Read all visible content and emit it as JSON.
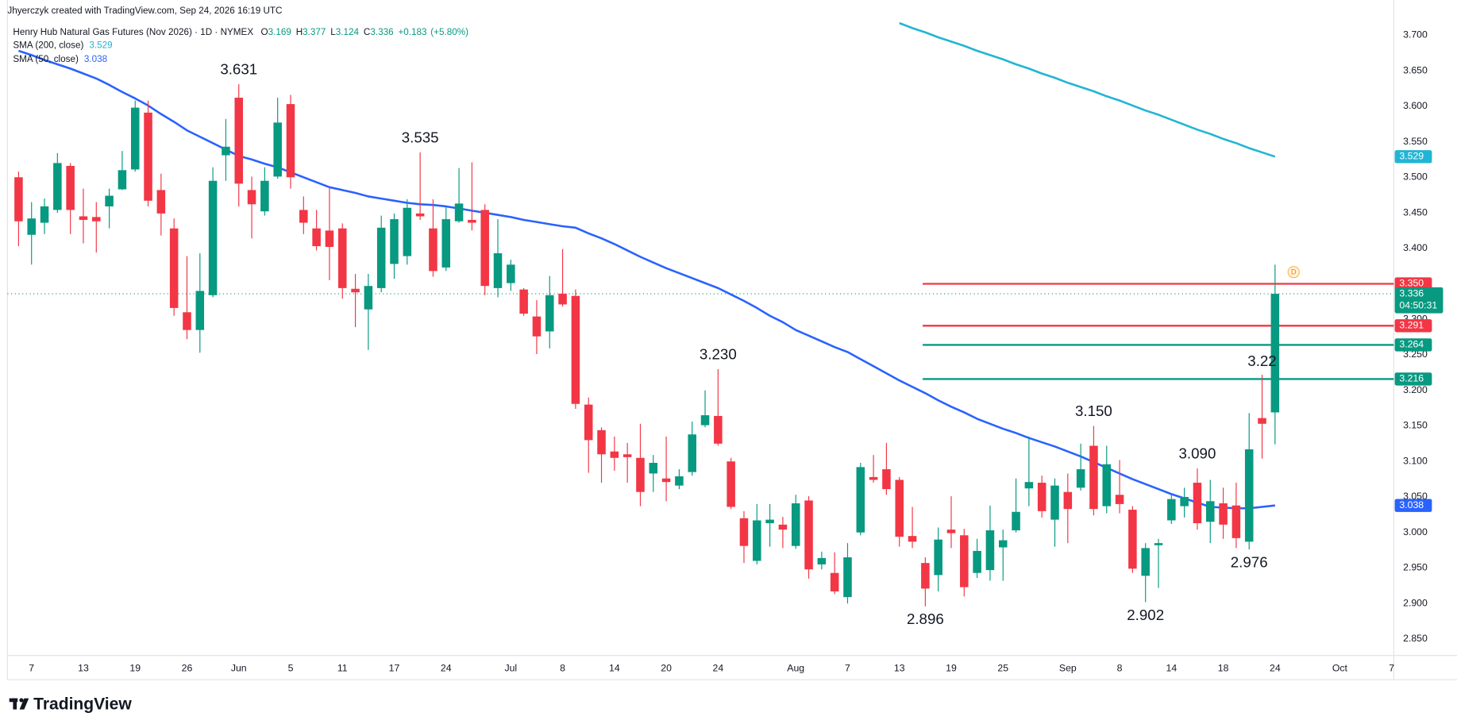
{
  "header": {
    "attribution": "Jhyerczyk created with TradingView.com, Sep 24, 2026 16:19 UTC",
    "symbol": "Henry Hub Natural Gas Futures (Nov 2026) · 1D · NYMEX"
  },
  "chart_data": {
    "type": "candlestick",
    "ohlc_labels": [
      "O",
      "H",
      "L",
      "C"
    ],
    "change": {
      "value": 0.183,
      "label": "+0.183"
    },
    "change_pct": {
      "value": 5.8,
      "label": "(+5.80%)"
    },
    "up_color": "#089981",
    "down_color": "#f23645",
    "categories": [
      null,
      "7",
      null,
      null,
      null,
      "13",
      null,
      null,
      null,
      "19",
      null,
      null,
      null,
      "26",
      null,
      null,
      null,
      "Jun",
      null,
      null,
      null,
      "5",
      null,
      null,
      null,
      "11",
      null,
      null,
      null,
      "17",
      null,
      null,
      null,
      "24",
      null,
      null,
      null,
      null,
      "Jul",
      null,
      null,
      null,
      "8",
      null,
      null,
      null,
      "14",
      null,
      null,
      null,
      "20",
      null,
      null,
      null,
      "24",
      null,
      null,
      null,
      null,
      null,
      "Aug",
      null,
      null,
      null,
      "7",
      null,
      null,
      null,
      "13",
      null,
      null,
      null,
      "19",
      null,
      null,
      null,
      "25",
      null,
      null,
      null,
      null,
      "Sep",
      null,
      null,
      null,
      "8",
      null,
      null,
      null,
      "14",
      null,
      null,
      null,
      "18",
      null,
      null,
      null,
      "24",
      null,
      null,
      null,
      null,
      "Oct",
      null,
      null,
      null,
      "7"
    ],
    "open": [
      3.5,
      3.419,
      3.436,
      3.454,
      3.516,
      3.445,
      3.444,
      3.459,
      3.483,
      3.511,
      3.591,
      3.482,
      3.428,
      3.31,
      3.285,
      3.334,
      3.531,
      3.612,
      3.482,
      3.452,
      3.501,
      3.603,
      3.454,
      3.428,
      3.425,
      3.428,
      3.343,
      3.314,
      3.344,
      3.378,
      3.389,
      3.449,
      3.428,
      3.373,
      3.438,
      3.44,
      3.454,
      3.344,
      3.351,
      3.342,
      3.304,
      3.283,
      3.336,
      3.333,
      3.18,
      3.144,
      3.114,
      3.11,
      3.105,
      3.083,
      3.076,
      3.066,
      3.085,
      3.151,
      3.164,
      3.1,
      3.02,
      2.96,
      3.013,
      3.011,
      2.981,
      3.045,
      2.955,
      2.943,
      2.909,
      3.0,
      3.078,
      3.089,
      3.074,
      2.995,
      2.957,
      2.94,
      3.004,
      2.996,
      2.943,
      2.947,
      2.979,
      3.003,
      3.062,
      3.07,
      3.018,
      3.057,
      3.063,
      3.122,
      3.037,
      3.053,
      3.032,
      2.939,
      2.982,
      3.017,
      3.037,
      3.07,
      3.015,
      3.041,
      3.038,
      2.987,
      3.161,
      3.169,
      null,
      null,
      null,
      null,
      null,
      null,
      null,
      null,
      null
    ],
    "high": [
      3.508,
      3.465,
      3.47,
      3.534,
      3.52,
      3.484,
      3.465,
      3.484,
      3.537,
      3.608,
      3.608,
      3.505,
      3.442,
      3.389,
      3.393,
      3.514,
      3.582,
      3.631,
      3.501,
      3.514,
      3.612,
      3.616,
      3.473,
      3.454,
      3.486,
      3.435,
      3.364,
      3.364,
      3.446,
      3.449,
      3.469,
      3.535,
      3.469,
      3.459,
      3.513,
      3.521,
      3.462,
      3.441,
      3.384,
      3.344,
      3.327,
      3.361,
      3.399,
      3.342,
      3.19,
      3.148,
      3.135,
      3.126,
      3.153,
      3.109,
      3.135,
      3.089,
      3.156,
      3.2,
      3.23,
      3.105,
      3.03,
      3.04,
      3.04,
      3.022,
      3.053,
      3.051,
      2.973,
      2.972,
      2.985,
      3.098,
      3.109,
      3.126,
      3.078,
      3.036,
      2.965,
      3.007,
      3.051,
      3.005,
      2.991,
      3.038,
      3.004,
      3.076,
      3.135,
      3.08,
      3.076,
      3.083,
      3.125,
      3.15,
      3.122,
      3.102,
      3.037,
      2.985,
      2.991,
      3.054,
      3.063,
      3.09,
      3.074,
      3.063,
      3.07,
      3.168,
      3.222,
      3.377,
      null,
      null,
      null,
      null,
      null,
      null,
      null,
      null,
      null
    ],
    "low": [
      3.403,
      3.377,
      3.42,
      3.45,
      3.42,
      3.407,
      3.394,
      3.428,
      3.482,
      3.508,
      3.459,
      3.418,
      3.305,
      3.272,
      3.253,
      3.331,
      3.495,
      3.459,
      3.414,
      3.446,
      3.498,
      3.484,
      3.42,
      3.397,
      3.355,
      3.329,
      3.289,
      3.257,
      3.338,
      3.357,
      3.377,
      3.44,
      3.36,
      3.368,
      3.436,
      3.425,
      3.334,
      3.331,
      3.34,
      3.305,
      3.251,
      3.259,
      3.318,
      3.174,
      3.084,
      3.07,
      3.087,
      3.07,
      3.037,
      3.057,
      3.044,
      3.061,
      3.08,
      3.148,
      3.122,
      3.033,
      2.957,
      2.955,
      2.98,
      2.978,
      2.977,
      2.935,
      2.948,
      2.913,
      2.9,
      2.996,
      3.07,
      3.053,
      2.98,
      2.978,
      2.896,
      2.917,
      2.978,
      2.91,
      2.936,
      2.932,
      2.932,
      3.0,
      3.037,
      3.021,
      2.98,
      2.985,
      3.059,
      3.024,
      3.027,
      3.027,
      2.943,
      2.902,
      2.922,
      3.012,
      3.021,
      3.004,
      2.985,
      2.991,
      2.978,
      2.976,
      3.104,
      3.124,
      null,
      null,
      null,
      null,
      null,
      null,
      null,
      null,
      null
    ],
    "close": [
      3.438,
      3.442,
      3.459,
      3.52,
      3.454,
      3.44,
      3.438,
      3.474,
      3.51,
      3.598,
      3.467,
      3.449,
      3.316,
      3.285,
      3.34,
      3.495,
      3.543,
      3.491,
      3.462,
      3.495,
      3.577,
      3.5,
      3.436,
      3.403,
      3.402,
      3.344,
      3.338,
      3.347,
      3.429,
      3.441,
      3.457,
      3.445,
      3.368,
      3.441,
      3.463,
      3.436,
      3.347,
      3.393,
      3.377,
      3.308,
      3.276,
      3.334,
      3.321,
      3.181,
      3.13,
      3.11,
      3.105,
      3.106,
      3.057,
      3.098,
      3.071,
      3.079,
      3.138,
      3.165,
      3.125,
      3.036,
      2.981,
      3.017,
      3.018,
      3.004,
      3.041,
      2.948,
      2.964,
      2.917,
      2.965,
      3.092,
      3.074,
      3.061,
      2.994,
      2.987,
      2.921,
      2.99,
      2.999,
      2.923,
      2.974,
      3.003,
      2.989,
      3.029,
      3.071,
      3.03,
      3.066,
      3.033,
      3.089,
      3.033,
      3.096,
      3.04,
      2.949,
      2.978,
      2.985,
      3.047,
      3.05,
      3.013,
      3.044,
      3.011,
      2.992,
      3.117,
      3.153,
      3.336,
      null,
      null,
      null,
      null,
      null,
      null,
      null,
      null,
      null
    ],
    "series": [
      {
        "name": "SMA (200, close)",
        "color": "#22b5d3",
        "values": [
          null,
          null,
          null,
          null,
          null,
          null,
          null,
          null,
          null,
          null,
          null,
          null,
          null,
          null,
          null,
          null,
          null,
          null,
          null,
          null,
          null,
          null,
          null,
          null,
          null,
          null,
          null,
          null,
          null,
          null,
          null,
          null,
          null,
          null,
          null,
          null,
          null,
          null,
          null,
          null,
          null,
          null,
          null,
          null,
          null,
          null,
          null,
          null,
          null,
          null,
          null,
          null,
          null,
          null,
          null,
          null,
          null,
          null,
          null,
          null,
          null,
          null,
          null,
          null,
          null,
          null,
          null,
          null,
          3.717,
          3.71,
          3.704,
          3.697,
          3.691,
          3.685,
          3.678,
          3.672,
          3.666,
          3.659,
          3.653,
          3.646,
          3.64,
          3.633,
          3.627,
          3.621,
          3.614,
          3.608,
          3.601,
          3.594,
          3.588,
          3.581,
          3.574,
          3.567,
          3.561,
          3.554,
          3.548,
          3.541,
          3.535,
          3.529,
          null,
          null,
          null,
          null,
          null,
          null,
          null,
          null,
          null
        ]
      },
      {
        "name": "SMA (50, close)",
        "color": "#2962ff",
        "values": [
          3.678,
          3.672,
          3.665,
          3.659,
          3.653,
          3.646,
          3.639,
          3.63,
          3.62,
          3.611,
          3.601,
          3.589,
          3.578,
          3.566,
          3.557,
          3.548,
          3.539,
          3.53,
          3.525,
          3.519,
          3.514,
          3.507,
          3.5,
          3.493,
          3.486,
          3.482,
          3.478,
          3.473,
          3.47,
          3.467,
          3.464,
          3.462,
          3.461,
          3.459,
          3.456,
          3.453,
          3.45,
          3.447,
          3.444,
          3.44,
          3.437,
          3.434,
          3.431,
          3.429,
          3.421,
          3.414,
          3.406,
          3.397,
          3.388,
          3.38,
          3.372,
          3.365,
          3.358,
          3.351,
          3.344,
          3.335,
          3.326,
          3.316,
          3.305,
          3.296,
          3.285,
          3.277,
          3.269,
          3.261,
          3.254,
          3.244,
          3.234,
          3.224,
          3.214,
          3.205,
          3.196,
          3.186,
          3.177,
          3.169,
          3.16,
          3.153,
          3.146,
          3.14,
          3.133,
          3.127,
          3.121,
          3.114,
          3.107,
          3.099,
          3.091,
          3.083,
          3.075,
          3.068,
          3.061,
          3.054,
          3.048,
          3.042,
          3.036,
          3.035,
          3.034,
          3.034,
          3.036,
          3.038,
          null,
          null,
          null,
          null,
          null,
          null,
          null,
          null,
          null
        ]
      }
    ],
    "last_price_countdown": "04:50:31",
    "event_marker": "D",
    "hlines": [
      {
        "value": 3.35,
        "label": "3.350",
        "color": "#f23645"
      },
      {
        "value": 3.291,
        "color": "#f23645"
      },
      {
        "value": 3.264,
        "color": "#089981"
      },
      {
        "value": 3.216,
        "color": "#089981"
      }
    ],
    "annotations": [
      {
        "index": 17,
        "value": 3.631,
        "position": "above"
      },
      {
        "index": 31,
        "value": 3.535,
        "position": "above"
      },
      {
        "index": 54,
        "value": 3.23,
        "label": "3.230",
        "position": "above"
      },
      {
        "index": 83,
        "value": 3.15,
        "label": "3.150",
        "position": "above"
      },
      {
        "index": 91,
        "value": 3.09,
        "label": "3.090",
        "position": "above"
      },
      {
        "index": 96,
        "value": 3.22,
        "position": "above"
      },
      {
        "index": 70,
        "value": 2.896,
        "position": "below"
      },
      {
        "index": 87,
        "value": 2.902,
        "position": "below"
      },
      {
        "index": 95,
        "value": 2.976,
        "position": "below"
      }
    ],
    "ylim": [
      2.828,
      3.726
    ],
    "yticks": [
      {
        "value": 2.85,
        "label": "2.850"
      },
      {
        "value": 2.9,
        "label": "2.900"
      },
      {
        "value": 2.95,
        "label": "2.950"
      },
      {
        "value": 3.0,
        "label": "3.000"
      },
      {
        "value": 3.05,
        "label": "3.050"
      },
      {
        "value": 3.1,
        "label": "3.100"
      },
      {
        "value": 3.15,
        "label": "3.150"
      },
      {
        "value": 3.2,
        "label": "3.200"
      },
      {
        "value": 3.25,
        "label": "3.250"
      },
      {
        "value": 3.3,
        "label": "3.300"
      },
      {
        "value": 3.35,
        "label": "3.350"
      },
      {
        "value": 3.4,
        "label": "3.400"
      },
      {
        "value": 3.45,
        "label": "3.450"
      },
      {
        "value": 3.5,
        "label": "3.500"
      },
      {
        "value": 3.55,
        "label": "3.550"
      },
      {
        "value": 3.6,
        "label": "3.600"
      },
      {
        "value": 3.65,
        "label": "3.650"
      },
      {
        "value": 3.7,
        "label": "3.700"
      }
    ],
    "grid": false
  },
  "footer": {
    "logo": "TradingView"
  }
}
